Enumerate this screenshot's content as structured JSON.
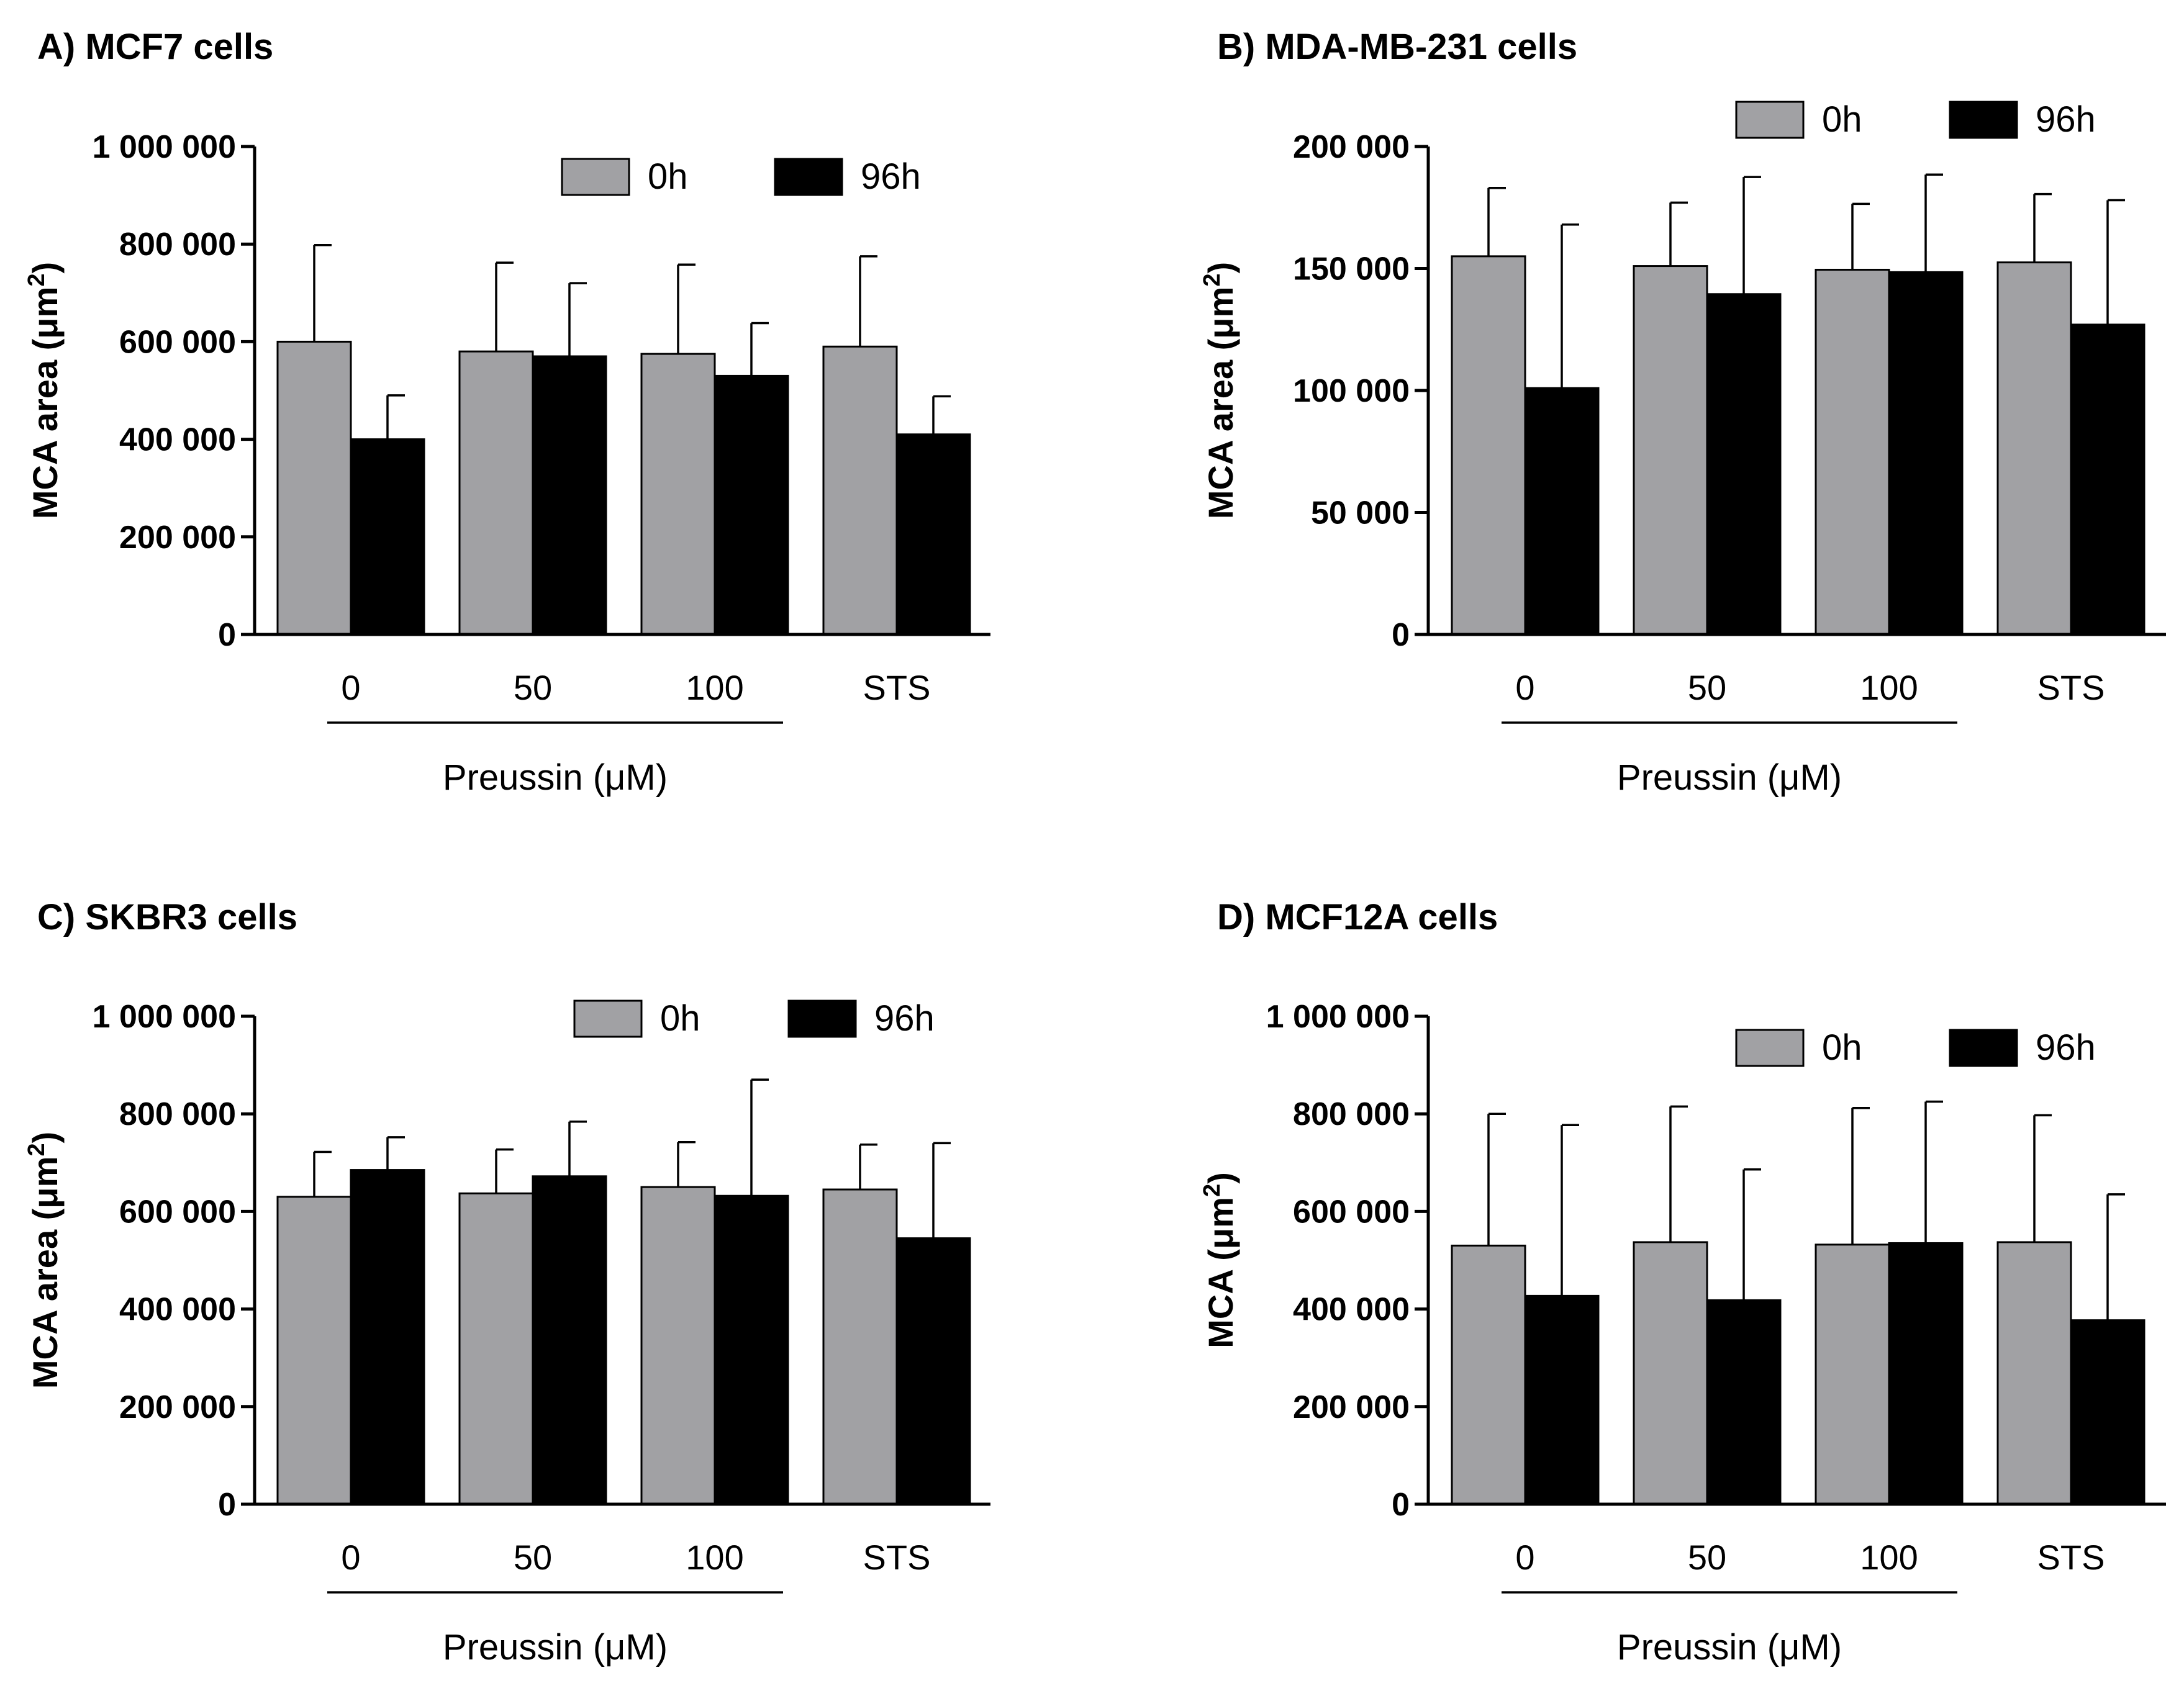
{
  "chart_data": [
    {
      "type": "bar",
      "id": "A",
      "title": "A) MCF7 cells",
      "ylabel": "MCA area (μm²)",
      "ylabel_base": "MCA area (μm",
      "ylabel_sup": "2",
      "ylabel_close": ")",
      "xlabel": "Preussin (μM)",
      "categories": [
        "0",
        "50",
        "100",
        "STS"
      ],
      "ylim": [
        0,
        1000000
      ],
      "yticks": [
        0,
        200000,
        400000,
        600000,
        800000,
        1000000
      ],
      "ytick_labels": [
        "0",
        "200 000",
        "400 000",
        "600 000",
        "800 000",
        "1 000 000"
      ],
      "legend_position": "top-right",
      "series": [
        {
          "name": "0h",
          "color": "#a1a1a4",
          "values": [
            600000,
            580000,
            575000,
            590000
          ],
          "errors": [
            198000,
            182000,
            183000,
            185000
          ]
        },
        {
          "name": "96h",
          "color": "#000000",
          "values": [
            400000,
            570000,
            530000,
            410000
          ],
          "errors": [
            90000,
            150000,
            108000,
            78000
          ]
        }
      ]
    },
    {
      "type": "bar",
      "id": "B",
      "title": "B) MDA-MB-231 cells",
      "ylabel": "MCA area (μm²)",
      "ylabel_base": "MCA area (μm",
      "ylabel_sup": "2",
      "ylabel_close": ")",
      "xlabel": "Preussin (μM)",
      "categories": [
        "0",
        "50",
        "100",
        "STS"
      ],
      "ylim": [
        0,
        200000
      ],
      "yticks": [
        0,
        50000,
        100000,
        150000,
        200000
      ],
      "ytick_labels": [
        "0",
        "50 000",
        "100 000",
        "150 000",
        "200 000"
      ],
      "legend_position": "top-right",
      "series": [
        {
          "name": "0h",
          "color": "#a1a1a4",
          "values": [
            155000,
            151000,
            149500,
            152500
          ],
          "errors": [
            28000,
            26000,
            27000,
            28000
          ]
        },
        {
          "name": "96h",
          "color": "#000000",
          "values": [
            101000,
            139500,
            148500,
            127000
          ],
          "errors": [
            67000,
            48000,
            40000,
            51000
          ]
        }
      ]
    },
    {
      "type": "bar",
      "id": "C",
      "title": "C) SKBR3 cells",
      "ylabel": "MCA area (μm²)",
      "ylabel_base": "MCA area (μm",
      "ylabel_sup": "2",
      "ylabel_close": ")",
      "xlabel": "Preussin (μM)",
      "categories": [
        "0",
        "50",
        "100",
        "STS"
      ],
      "ylim": [
        0,
        1000000
      ],
      "yticks": [
        0,
        200000,
        400000,
        600000,
        800000,
        1000000
      ],
      "ytick_labels": [
        "0",
        "200 000",
        "400 000",
        "600 000",
        "800 000",
        "1 000 000"
      ],
      "legend_position": "top-right",
      "series": [
        {
          "name": "0h",
          "color": "#a1a1a4",
          "values": [
            630000,
            637000,
            650000,
            645000
          ],
          "errors": [
            92000,
            90000,
            92000,
            92000
          ]
        },
        {
          "name": "96h",
          "color": "#000000",
          "values": [
            685000,
            672000,
            632000,
            545000
          ],
          "errors": [
            67000,
            112000,
            238000,
            195000
          ]
        }
      ]
    },
    {
      "type": "bar",
      "id": "D",
      "title": "D) MCF12A cells",
      "ylabel": "MCA (μm²)",
      "ylabel_base": "MCA (μm",
      "ylabel_sup": "2",
      "ylabel_close": ")",
      "xlabel": "Preussin (μM)",
      "categories": [
        "0",
        "50",
        "100",
        "STS"
      ],
      "ylim": [
        0,
        1000000
      ],
      "yticks": [
        0,
        200000,
        400000,
        600000,
        800000,
        1000000
      ],
      "ytick_labels": [
        "0",
        "200 000",
        "400 000",
        "600 000",
        "800 000",
        "1 000 000"
      ],
      "legend_position": "top-right",
      "series": [
        {
          "name": "0h",
          "color": "#a1a1a4",
          "values": [
            530000,
            537000,
            532000,
            537000
          ],
          "errors": [
            270000,
            278000,
            280000,
            260000
          ]
        },
        {
          "name": "96h",
          "color": "#000000",
          "values": [
            427000,
            418000,
            535000,
            377000
          ],
          "errors": [
            350000,
            268000,
            290000,
            258000
          ]
        }
      ]
    }
  ]
}
